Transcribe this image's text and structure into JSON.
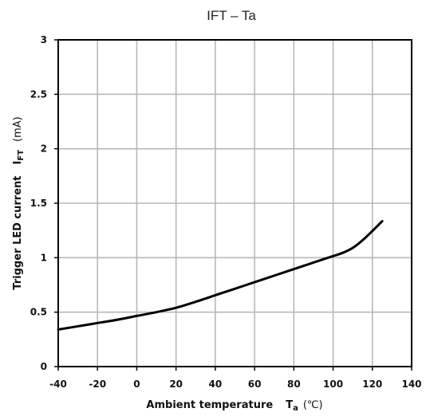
{
  "chart_data": {
    "type": "line",
    "title": "IFT – Ta",
    "xlabel": {
      "name": "Ambient temperature",
      "symbol": "T",
      "subscript": "a",
      "unit": "(℃)"
    },
    "ylabel": {
      "name": "Trigger LED current",
      "symbol": "I",
      "subscript": "FT",
      "unit": "(mA)"
    },
    "xlim": [
      -40,
      140
    ],
    "ylim": [
      0,
      3
    ],
    "xticks": [
      -40,
      -20,
      0,
      20,
      40,
      60,
      80,
      100,
      120,
      140
    ],
    "yticks": [
      0,
      0.5,
      1,
      1.5,
      2,
      2.5,
      3
    ],
    "xtick_labels": [
      "-40",
      "-20",
      "0",
      "20",
      "40",
      "60",
      "80",
      "100",
      "120",
      "140"
    ],
    "ytick_labels": [
      "0",
      "0.5",
      "1",
      "1.5",
      "2",
      "2.5",
      "3"
    ],
    "grid": true,
    "series": [
      {
        "color": "#000000",
        "x": [
          -40,
          -30,
          -20,
          -10,
          0,
          10,
          20,
          30,
          40,
          50,
          60,
          70,
          80,
          90,
          100,
          105,
          110,
          115,
          120,
          125
        ],
        "y": [
          0.34,
          0.37,
          0.4,
          0.43,
          0.465,
          0.5,
          0.54,
          0.595,
          0.655,
          0.715,
          0.775,
          0.835,
          0.895,
          0.955,
          1.015,
          1.045,
          1.09,
          1.16,
          1.245,
          1.335
        ]
      }
    ]
  }
}
